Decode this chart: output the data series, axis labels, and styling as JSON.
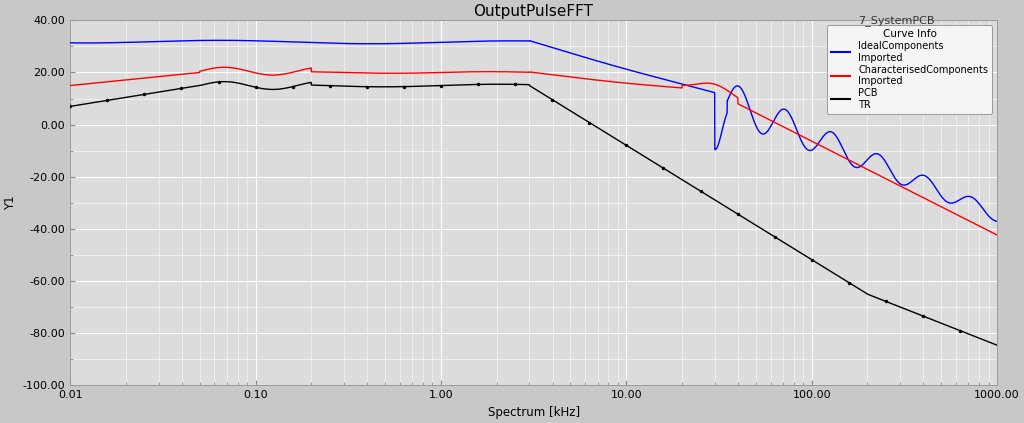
{
  "title": "OutputPulseFFT",
  "subtitle": "7_SystemPCB",
  "xlabel": "Spectrum [kHz]",
  "ylabel": "Y1",
  "ylim": [
    -100,
    40
  ],
  "yticks": [
    40,
    20,
    0,
    -20,
    -40,
    -60,
    -80,
    -100
  ],
  "xtick_labels": [
    "0.01",
    "0.10",
    "1.00",
    "10.00",
    "100.00",
    "1000.00"
  ],
  "xtick_vals": [
    0.01,
    0.1,
    1.0,
    10.0,
    100.0,
    1000.0
  ],
  "bg_color": "#e0e0e0",
  "grid_color": "#ffffff",
  "legend_title": "Curve Info",
  "blue_color": "#0000ff",
  "red_color": "#ff0000",
  "black_color": "#000000"
}
